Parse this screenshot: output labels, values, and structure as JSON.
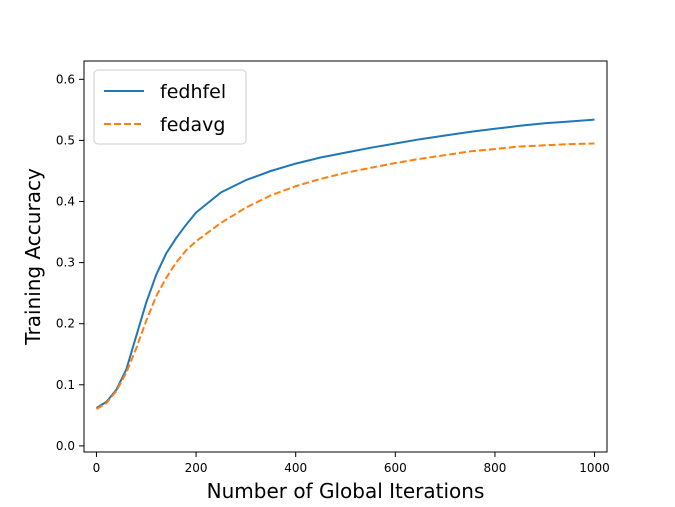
{
  "chart_data": {
    "type": "line",
    "xlabel": "Number of Global Iterations",
    "ylabel": "Training Accuracy",
    "xlim": [
      -25,
      1025
    ],
    "ylim": [
      -0.01,
      0.63
    ],
    "xticks": [
      0,
      200,
      400,
      600,
      800,
      1000
    ],
    "yticks": [
      0.0,
      0.1,
      0.2,
      0.3,
      0.4,
      0.5,
      0.6
    ],
    "xtick_labels": [
      "0",
      "200",
      "400",
      "600",
      "800",
      "1000"
    ],
    "ytick_labels": [
      "0.0",
      "0.1",
      "0.2",
      "0.3",
      "0.4",
      "0.5",
      "0.6"
    ],
    "grid": false,
    "legend_position": "top-left",
    "series": [
      {
        "name": "fedhfel",
        "color": "#1f77b4",
        "dash": "solid",
        "x": [
          0,
          20,
          40,
          60,
          80,
          100,
          120,
          140,
          160,
          180,
          200,
          250,
          300,
          350,
          400,
          450,
          500,
          550,
          600,
          650,
          700,
          750,
          800,
          850,
          900,
          950,
          1000
        ],
        "y": [
          0.062,
          0.072,
          0.092,
          0.125,
          0.18,
          0.235,
          0.28,
          0.315,
          0.34,
          0.362,
          0.382,
          0.415,
          0.435,
          0.45,
          0.462,
          0.472,
          0.48,
          0.488,
          0.495,
          0.502,
          0.508,
          0.514,
          0.519,
          0.524,
          0.528,
          0.531,
          0.534
        ]
      },
      {
        "name": "fedavg",
        "color": "#ff7f0e",
        "dash": "dashed",
        "x": [
          0,
          20,
          40,
          60,
          80,
          100,
          120,
          140,
          160,
          180,
          200,
          250,
          300,
          350,
          400,
          450,
          500,
          550,
          600,
          650,
          700,
          750,
          800,
          850,
          900,
          950,
          1000
        ],
        "y": [
          0.06,
          0.07,
          0.09,
          0.12,
          0.16,
          0.205,
          0.245,
          0.275,
          0.3,
          0.32,
          0.335,
          0.365,
          0.39,
          0.41,
          0.425,
          0.437,
          0.447,
          0.455,
          0.463,
          0.47,
          0.476,
          0.482,
          0.486,
          0.49,
          0.492,
          0.494,
          0.495
        ]
      }
    ]
  }
}
